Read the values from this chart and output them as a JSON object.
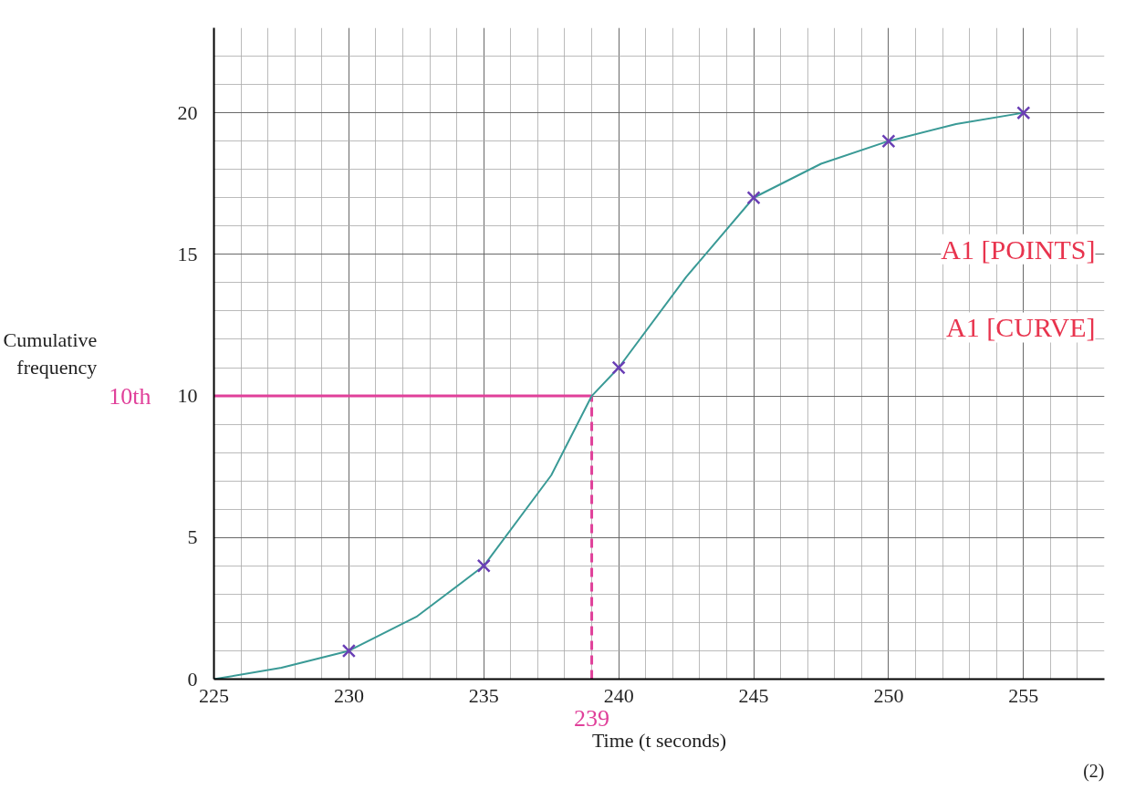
{
  "chart_data": {
    "type": "line",
    "xlabel": "Time (t seconds)",
    "ylabel": "Cumulative frequency",
    "xlim": [
      225,
      258
    ],
    "ylim": [
      0,
      23
    ],
    "xticks": [
      225,
      230,
      235,
      240,
      245,
      250,
      255
    ],
    "yticks": [
      0,
      5,
      10,
      15,
      20
    ],
    "grid": true,
    "series": [
      {
        "color": "#3a9a96",
        "marker": "none",
        "x": [
          225,
          227.5,
          230,
          232.5,
          235,
          237.5,
          239,
          240,
          242.5,
          245,
          247.5,
          250,
          252.5,
          255
        ],
        "values": [
          0,
          0.4,
          1,
          2.2,
          4,
          7.2,
          10,
          11,
          14.2,
          17,
          18.2,
          19,
          19.6,
          20
        ]
      },
      {
        "type": "scatter",
        "color": "#6a3fb5",
        "marker": "cross",
        "x": [
          230,
          235,
          240,
          245,
          250,
          255
        ],
        "values": [
          1,
          4,
          11,
          17,
          19,
          20
        ]
      }
    ],
    "ref_lines": [
      {
        "axis": "y",
        "value": 10,
        "label": "10th",
        "color": "#e0409a",
        "line_style": "solid"
      },
      {
        "axis": "x",
        "value": 239,
        "label": "239",
        "color": "#e0409a",
        "line_style": "dashed"
      }
    ],
    "annotations": [
      "A1 [POINTS]",
      "A1 [CURVE]",
      "(2)"
    ]
  }
}
